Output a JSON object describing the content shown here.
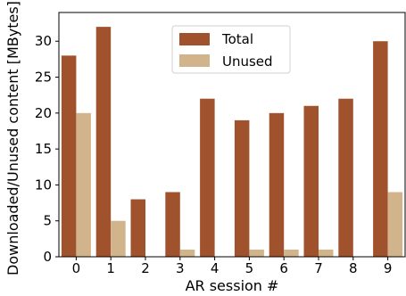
{
  "chart_data": {
    "type": "bar",
    "title": "",
    "xlabel": "AR session #",
    "ylabel": "Downloaded/Unused content [MBytes]",
    "categories": [
      "0",
      "1",
      "2",
      "3",
      "4",
      "5",
      "6",
      "7",
      "8",
      "9"
    ],
    "series": [
      {
        "name": "Total",
        "color": "#a0522d",
        "values": [
          28,
          32,
          8,
          9,
          22,
          19,
          20,
          21,
          22,
          30
        ]
      },
      {
        "name": "Unused",
        "color": "#d2b48c",
        "values": [
          20,
          5,
          0,
          1,
          0,
          1,
          1,
          1,
          0,
          9
        ]
      }
    ],
    "ylim": [
      0,
      34
    ],
    "yticks": [
      0,
      5,
      10,
      15,
      20,
      25,
      30
    ],
    "grid": false,
    "legend_position": "top-center"
  }
}
